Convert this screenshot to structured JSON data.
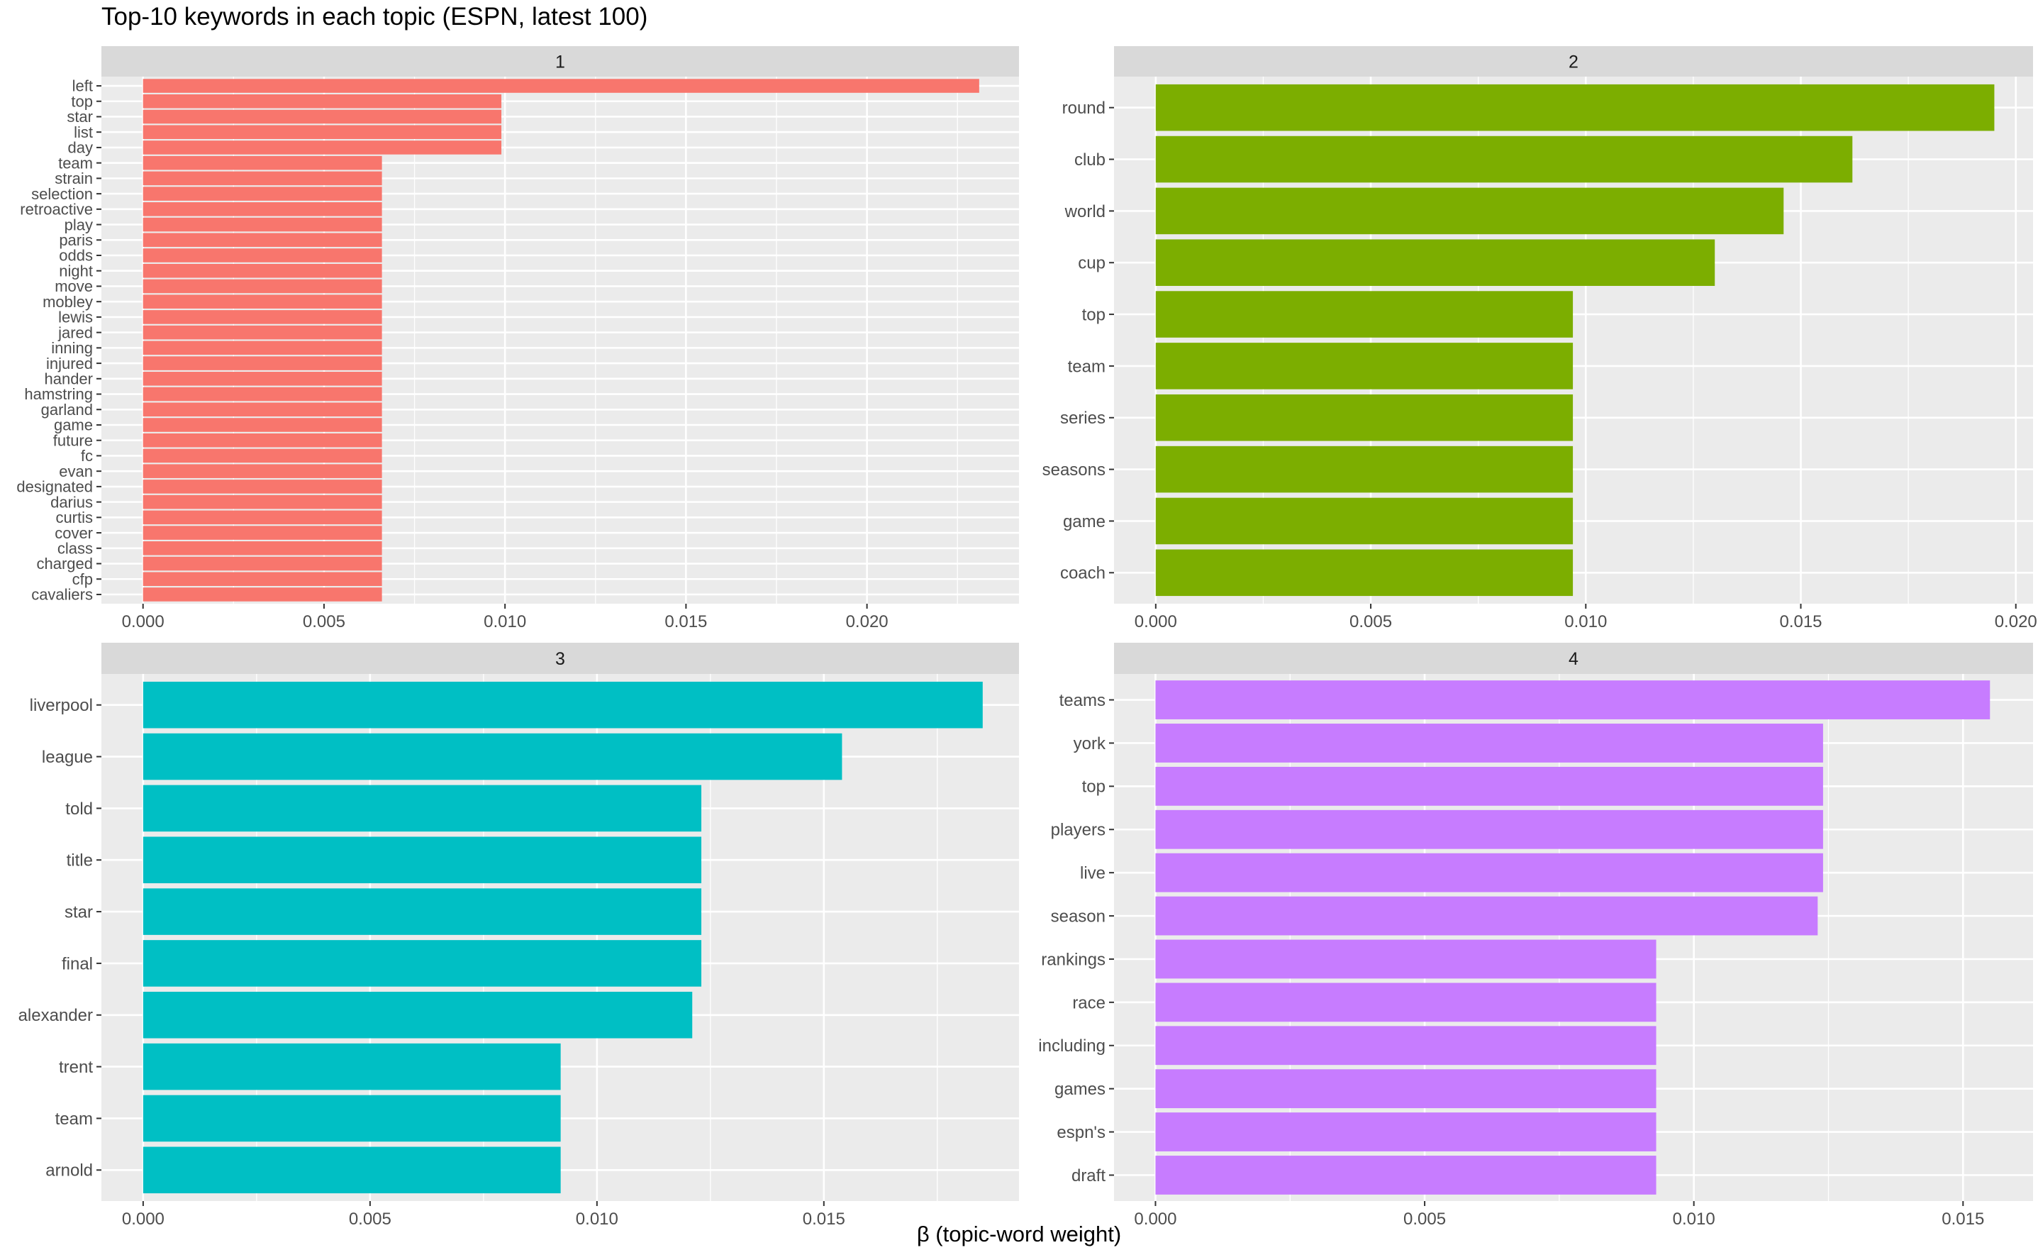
{
  "chart_data": {
    "type": "bar",
    "orientation": "horizontal",
    "title": "Top-10 keywords in each topic (ESPN, latest 100)",
    "xlabel": "β (topic-word weight)",
    "ylabel": "",
    "grid": true,
    "legend": "none",
    "panels": [
      {
        "strip": "1",
        "color": "#F8766D",
        "xlim": [
          -0.00115,
          0.0242
        ],
        "xticks": [
          0,
          0.005,
          0.01,
          0.015,
          0.02
        ],
        "xtick_labels": [
          "0.000",
          "0.005",
          "0.010",
          "0.015",
          "0.020"
        ],
        "categories": [
          "left",
          "top",
          "star",
          "list",
          "day",
          "team",
          "strain",
          "selection",
          "retroactive",
          "play",
          "paris",
          "odds",
          "night",
          "move",
          "mobley",
          "lewis",
          "jared",
          "inning",
          "injured",
          "hander",
          "hamstring",
          "garland",
          "game",
          "future",
          "fc",
          "evan",
          "designated",
          "darius",
          "curtis",
          "cover",
          "class",
          "charged",
          "cfp",
          "cavaliers"
        ],
        "values": [
          0.0231,
          0.0099,
          0.0099,
          0.0099,
          0.0099,
          0.0066,
          0.0066,
          0.0066,
          0.0066,
          0.0066,
          0.0066,
          0.0066,
          0.0066,
          0.0066,
          0.0066,
          0.0066,
          0.0066,
          0.0066,
          0.0066,
          0.0066,
          0.0066,
          0.0066,
          0.0066,
          0.0066,
          0.0066,
          0.0066,
          0.0066,
          0.0066,
          0.0066,
          0.0066,
          0.0066,
          0.0066,
          0.0066,
          0.0066
        ]
      },
      {
        "strip": "2",
        "color": "#7CAE00",
        "xlim": [
          -0.00097,
          0.0204
        ],
        "xticks": [
          0,
          0.005,
          0.01,
          0.015,
          0.02
        ],
        "xtick_labels": [
          "0.000",
          "0.005",
          "0.010",
          "0.015",
          "0.020"
        ],
        "categories": [
          "round",
          "club",
          "world",
          "cup",
          "top",
          "team",
          "series",
          "seasons",
          "game",
          "coach"
        ],
        "values": [
          0.0195,
          0.0162,
          0.0146,
          0.013,
          0.0097,
          0.0097,
          0.0097,
          0.0097,
          0.0097,
          0.0097
        ]
      },
      {
        "strip": "3",
        "color": "#00BFC4",
        "xlim": [
          -0.00092,
          0.0193
        ],
        "xticks": [
          0,
          0.005,
          0.01,
          0.015
        ],
        "xtick_labels": [
          "0.000",
          "0.005",
          "0.010",
          "0.015"
        ],
        "categories": [
          "liverpool",
          "league",
          "told",
          "title",
          "star",
          "final",
          "alexander",
          "trent",
          "team",
          "arnold"
        ],
        "values": [
          0.0185,
          0.0154,
          0.0123,
          0.0123,
          0.0123,
          0.0123,
          0.0121,
          0.0092,
          0.0092,
          0.0092
        ]
      },
      {
        "strip": "4",
        "color": "#C77CFF",
        "xlim": [
          -0.00077,
          0.0163
        ],
        "xticks": [
          0,
          0.005,
          0.01,
          0.015
        ],
        "xtick_labels": [
          "0.000",
          "0.005",
          "0.010",
          "0.015"
        ],
        "categories": [
          "teams",
          "york",
          "top",
          "players",
          "live",
          "season",
          "rankings",
          "race",
          "including",
          "games",
          "espn's",
          "draft"
        ],
        "values": [
          0.0155,
          0.0124,
          0.0124,
          0.0124,
          0.0124,
          0.0123,
          0.0093,
          0.0093,
          0.0093,
          0.0093,
          0.0093,
          0.0093
        ]
      }
    ]
  }
}
